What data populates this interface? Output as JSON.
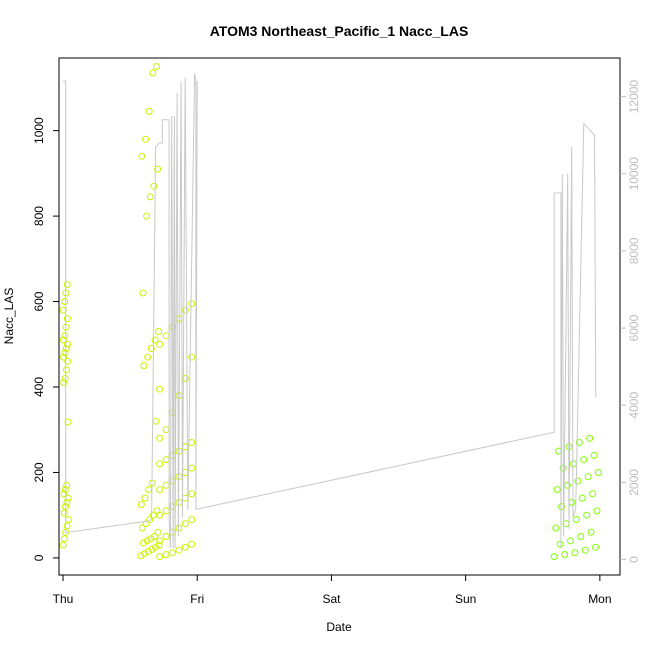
{
  "chart_data": {
    "type": "scatter",
    "title": "ATOM3 Northeast_Pacific_1 Nacc_LAS",
    "xlabel": "Date",
    "ylabel": "Nacc_LAS",
    "x_ticks": [
      "Thu",
      "Fri",
      "Sat",
      "Sun",
      "Mon"
    ],
    "xlim": [
      -0.03,
      4.15
    ],
    "ylim": [
      -40,
      1170
    ],
    "y_ticks": [
      0,
      200,
      400,
      600,
      800,
      1000
    ],
    "y2lim": [
      -400,
      13000
    ],
    "y2_ticks": [
      0,
      2000,
      4000,
      6000,
      8000,
      10000,
      12000
    ],
    "grid": false,
    "legend": "none",
    "colors": {
      "points_early": "#ccf200",
      "points_late": "#7fff00",
      "line_series": "#c8c8c8",
      "right_axis": "#bdbdbd",
      "axes": "#000000"
    },
    "series": [
      {
        "kind": "points",
        "axis": "left",
        "color_key": "points_early",
        "clusters": [
          {
            "x_range": [
              0.0,
              0.04
            ],
            "y_values": [
              30,
              45,
              60,
              75,
              90,
              105,
              120,
              130,
              140,
              150,
              160,
              170,
              318,
              410,
              420,
              440,
              460,
              470,
              480,
              490,
              500,
              510,
              520,
              540,
              560,
              580,
              600,
              620,
              640
            ]
          },
          {
            "x_range": [
              0.58,
              0.72
            ],
            "y_values": [
              5,
              10,
              15,
              20,
              25,
              30,
              35,
              40,
              45,
              50,
              60,
              70,
              80,
              90,
              100,
              110,
              125,
              140,
              160,
              175,
              320,
              395,
              450,
              470,
              490,
              510,
              530,
              620,
              800,
              845,
              870,
              910,
              940,
              980,
              1045,
              1135,
              1150
            ]
          },
          {
            "x_range": [
              0.72,
              1.0
            ],
            "y_values": [
              3,
              8,
              12,
              18,
              25,
              32,
              40,
              50,
              60,
              70,
              80,
              90,
              100,
              110,
              120,
              130,
              140,
              150,
              160,
              170,
              180,
              190,
              200,
              210,
              220,
              230,
              240,
              250,
              260,
              270,
              280,
              300,
              340,
              380,
              420,
              470,
              500,
              520,
              540,
              560,
              580,
              595
            ]
          }
        ]
      },
      {
        "kind": "points",
        "axis": "left",
        "color_key": "points_late",
        "clusters": [
          {
            "x_range": [
              3.66,
              3.99
            ],
            "y_values": [
              3,
              8,
              12,
              18,
              25,
              32,
              40,
              50,
              60,
              70,
              80,
              90,
              100,
              110,
              120,
              130,
              140,
              150,
              160,
              170,
              180,
              190,
              200,
              210,
              220,
              230,
              240,
              250,
              260,
              270,
              280
            ]
          }
        ]
      },
      {
        "kind": "line",
        "axis": "right",
        "color_key": "line_series",
        "points": [
          [
            0.0,
            12400
          ],
          [
            0.02,
            12400
          ],
          [
            0.02,
            700
          ],
          [
            0.64,
            1000
          ],
          [
            0.66,
            1050
          ],
          [
            0.69,
            10700
          ],
          [
            0.72,
            10800
          ],
          [
            0.74,
            10800
          ],
          [
            0.74,
            11400
          ],
          [
            0.79,
            11400
          ],
          [
            0.79,
            1100
          ],
          [
            0.8,
            300
          ],
          [
            0.81,
            11500
          ],
          [
            0.82,
            300
          ],
          [
            0.83,
            11500
          ],
          [
            0.835,
            300
          ],
          [
            0.85,
            12100
          ],
          [
            0.86,
            600
          ],
          [
            0.88,
            12400
          ],
          [
            0.89,
            1100
          ],
          [
            0.91,
            12500
          ],
          [
            0.93,
            1300
          ],
          [
            0.98,
            12600
          ],
          [
            0.99,
            12400
          ],
          [
            0.99,
            1300
          ],
          [
            1.0,
            12400
          ],
          [
            0.99,
            1300
          ],
          [
            3.66,
            3300
          ],
          [
            3.66,
            9500
          ],
          [
            3.71,
            9500
          ],
          [
            3.71,
            300
          ],
          [
            3.72,
            10000
          ],
          [
            3.73,
            600
          ],
          [
            3.76,
            10000
          ],
          [
            3.77,
            800
          ],
          [
            3.79,
            10700
          ],
          [
            3.8,
            1100
          ],
          [
            3.82,
            1300
          ],
          [
            3.88,
            11300
          ],
          [
            3.96,
            11000
          ],
          [
            3.97,
            4200
          ]
        ]
      }
    ]
  }
}
